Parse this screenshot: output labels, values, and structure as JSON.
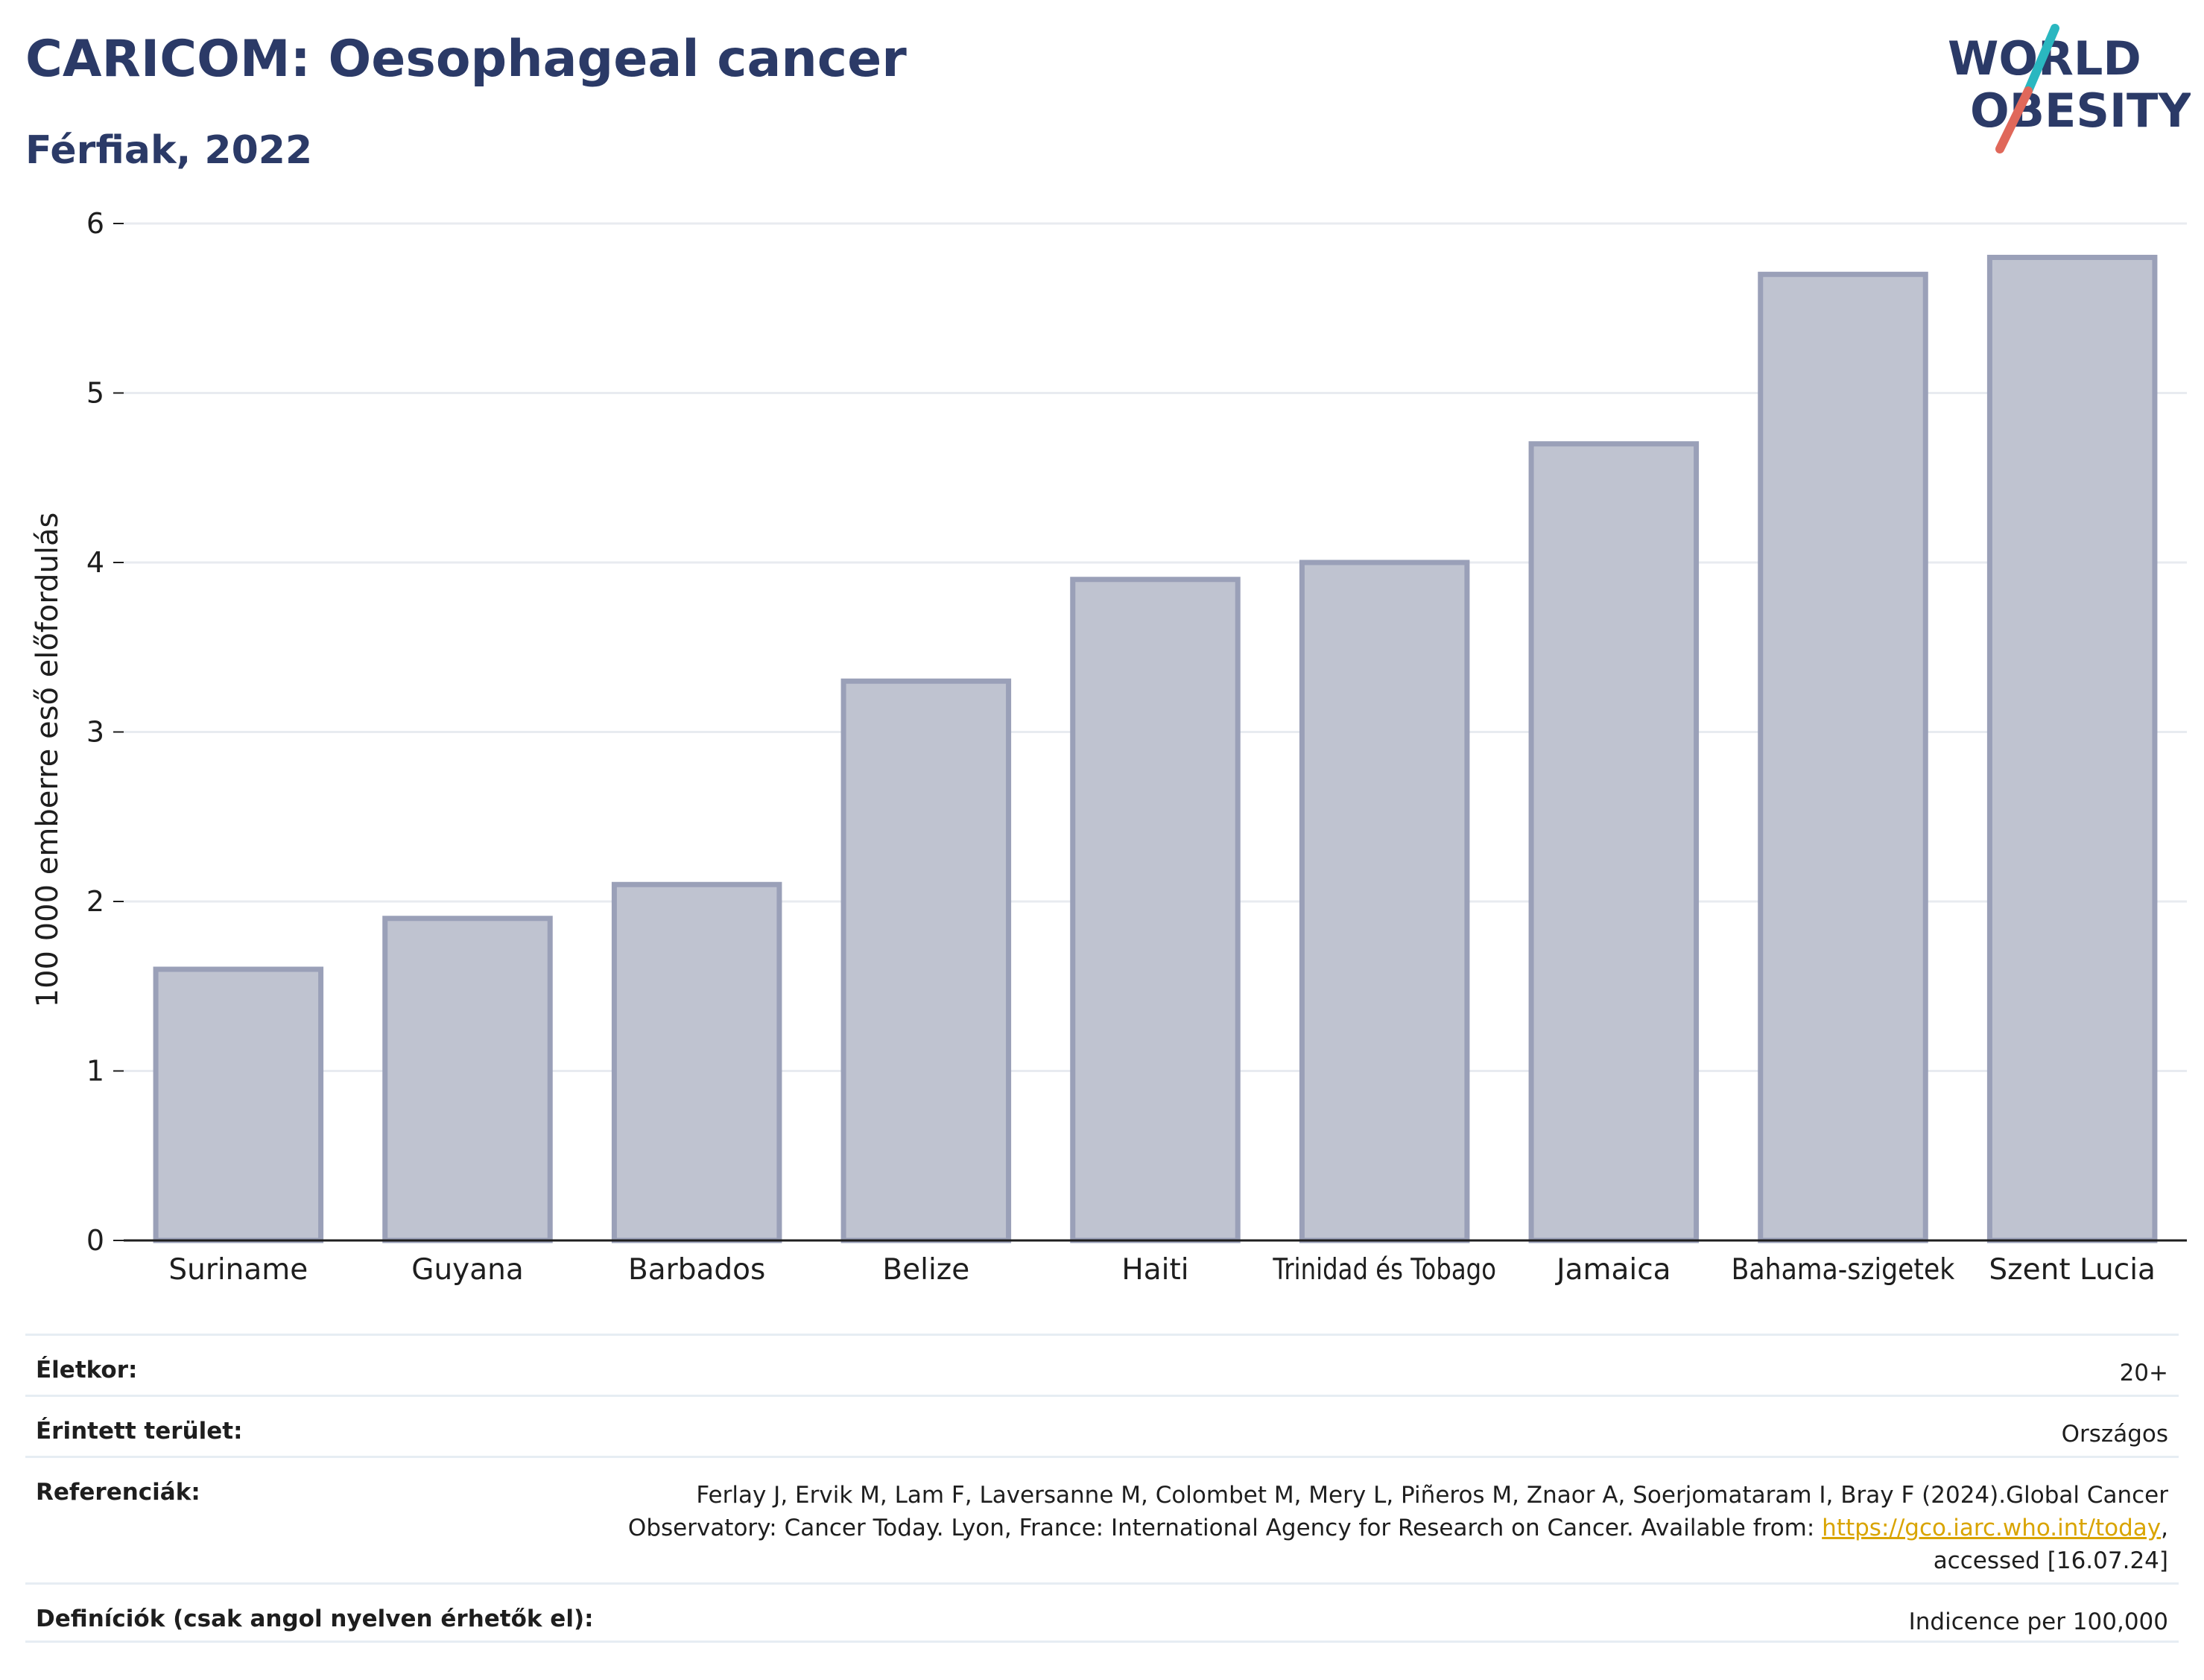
{
  "header": {
    "title": "CARICOM: Oesophageal cancer",
    "subtitle": "Férfiak, 2022"
  },
  "logo": {
    "line1": "WORLD",
    "line2": "OBESITY",
    "colors": {
      "text": "#2b3a67",
      "slash_teal": "#2ab7c0",
      "slash_red": "#e0685a"
    }
  },
  "chart_data": {
    "type": "bar",
    "categories": [
      "Suriname",
      "Guyana",
      "Barbados",
      "Belize",
      "Haiti",
      "Trinidad és Tobago",
      "Jamaica",
      "Bahama-szigetek",
      "Szent Lucia"
    ],
    "values": [
      1.6,
      1.9,
      2.1,
      3.3,
      3.9,
      4.0,
      4.7,
      5.7,
      5.8
    ],
    "title": "CARICOM: Oesophageal cancer",
    "subtitle": "Férfiak, 2022",
    "xlabel": "",
    "ylabel": "100 000 emberre eső előfordulás",
    "ylim": [
      0,
      6
    ],
    "yticks": [
      0,
      1,
      2,
      3,
      4,
      5,
      6
    ],
    "grid": true,
    "legend": "none",
    "colors": {
      "bar_fill": "#bfc3d0",
      "bar_stroke": "#9aa0b8",
      "grid": "#e8ebf0",
      "axis": "#1e1e1e"
    }
  },
  "info": {
    "rows": [
      {
        "label": "Életkor:",
        "value": "20+"
      },
      {
        "label": "Érintett terület:",
        "value": "Országos"
      },
      {
        "label": "Referenciák:",
        "value_line1": "Ferlay J, Ervik M, Lam F, Laversanne M, Colombet M, Mery L, Piñeros M, Znaor A, Soerjomataram I, Bray F (2024).Global Cancer",
        "value_line2_prefix": "Observatory: Cancer Today. Lyon, France: International Agency for Research on Cancer. Available from: ",
        "link": "https://gco.iarc.who.int/today",
        "value_line2_suffix": ",",
        "value_line3": "accessed [16.07.24]"
      },
      {
        "label": "Definíciók (csak angol nyelven érhetők el):",
        "value": "Indicence per 100,000"
      }
    ]
  }
}
